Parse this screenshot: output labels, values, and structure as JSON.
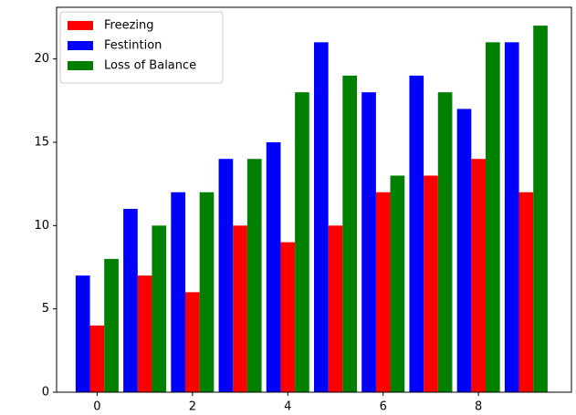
{
  "chart_data": {
    "type": "bar",
    "x": [
      0,
      1,
      2,
      3,
      4,
      5,
      6,
      7,
      8,
      9
    ],
    "series": [
      {
        "name": "Freezing",
        "color": "#ff0000",
        "values": [
          4,
          7,
          6,
          10,
          9,
          10,
          12,
          13,
          14,
          12
        ]
      },
      {
        "name": "Festintion",
        "color": "#0000ff",
        "values": [
          7,
          11,
          12,
          14,
          15,
          21,
          18,
          19,
          17,
          21
        ]
      },
      {
        "name": "Loss of Balance",
        "color": "#008000",
        "values": [
          8,
          10,
          12,
          14,
          18,
          19,
          13,
          18,
          21,
          22
        ]
      }
    ],
    "xlim": [
      -0.85,
      9.95
    ],
    "xticks": [
      0,
      2,
      4,
      6,
      8
    ],
    "ylim": [
      0,
      23.1
    ],
    "yticks": [
      0,
      5,
      10,
      15,
      20
    ],
    "legend": "upper left"
  }
}
